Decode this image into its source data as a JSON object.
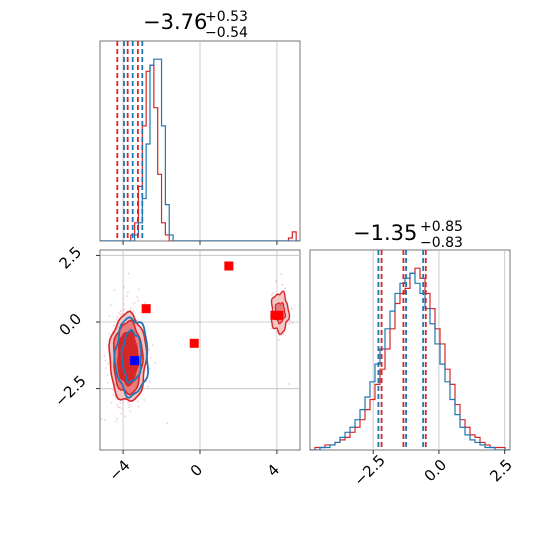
{
  "chart_data": {
    "type": "corner",
    "colors": {
      "red": "#d62728",
      "blue": "#1f77b4",
      "marker_blue": "#0000ff",
      "grid": "#bfbfbf"
    },
    "panels": [
      {
        "id": "top-left-hist",
        "type": "histogram",
        "title": {
          "main": "−3.76",
          "sup": "+0.53",
          "sub": "−0.54"
        },
        "xlim": [
          -5.2,
          5.2
        ],
        "grid": true,
        "series": [
          {
            "name": "",
            "color": "#d62728",
            "bin_start": -5.2,
            "bin_width": 0.2,
            "counts": [
              0,
              0,
              0,
              0,
              0,
              0,
              0,
              0,
              2,
              6,
              18,
              38,
              56,
              58,
              44,
              22,
              6,
              2,
              0,
              0,
              0,
              0,
              0,
              0,
              0,
              0,
              0,
              0,
              0,
              0,
              0,
              0,
              0,
              0,
              0,
              0,
              0,
              0,
              0,
              0,
              0,
              0,
              0,
              0,
              0,
              0,
              0,
              0,
              0,
              1,
              3,
              0
            ]
          },
          {
            "name": "",
            "color": "#1f77b4",
            "bin_start": -5.2,
            "bin_width": 0.2,
            "counts": [
              0,
              0,
              0,
              0,
              0,
              0,
              0,
              0,
              0,
              2,
              6,
              14,
              32,
              58,
              60,
              60,
              38,
              12,
              2,
              0,
              0,
              0,
              0,
              0,
              0,
              0,
              0,
              0,
              0,
              0,
              0,
              0,
              0,
              0,
              0,
              0,
              0,
              0,
              0,
              0,
              0,
              0,
              0,
              0,
              0,
              0,
              0,
              0,
              0,
              0,
              0,
              0
            ]
          }
        ],
        "quantile_lines": [
          {
            "color": "#d62728",
            "x": [
              -4.3,
              -3.76,
              -3.23
            ]
          },
          {
            "color": "#1f77b4",
            "x": [
              -3.95,
              -3.5,
              -3.0
            ]
          }
        ]
      },
      {
        "id": "bottom-left-2d",
        "type": "contour",
        "xlim": [
          -5.2,
          5.2
        ],
        "ylim": [
          -4.8,
          2.7
        ],
        "xticks": [
          -4,
          0,
          4
        ],
        "xtick_labels": [
          "−4",
          "0",
          "4"
        ],
        "yticks": [
          2.5,
          0.0,
          -2.5
        ],
        "ytick_labels": [
          "2.5",
          "0.0",
          "−2.5"
        ],
        "grid": true,
        "red_contours": [
          {
            "center": [
              -3.75,
              -1.35
            ],
            "radii": [
              0.95,
              1.65
            ],
            "fill": "#f4c7c7"
          },
          {
            "center": [
              -3.75,
              -1.35
            ],
            "radii": [
              0.75,
              1.35
            ],
            "fill": "#e77b7d"
          },
          {
            "center": [
              -3.75,
              -1.35
            ],
            "radii": [
              0.52,
              1.0
            ],
            "fill": "#d62728"
          }
        ],
        "red_island": {
          "center": [
            4.15,
            0.35
          ],
          "radii": [
            0.45,
            0.75
          ]
        },
        "blue_contours": [
          {
            "center": [
              -3.55,
              -1.3
            ],
            "radii": [
              0.85,
              1.45
            ]
          },
          {
            "center": [
              -3.55,
              -1.3
            ],
            "radii": [
              0.5,
              0.95
            ]
          }
        ],
        "red_markers": [
          [
            -2.8,
            0.5
          ],
          [
            1.5,
            2.1
          ],
          [
            -0.3,
            -0.8
          ],
          [
            3.9,
            0.25
          ],
          [
            4.1,
            0.25
          ]
        ],
        "blue_markers": [
          [
            -3.4,
            -1.45
          ]
        ]
      },
      {
        "id": "bottom-right-hist",
        "type": "histogram",
        "title": {
          "main": "−1.35",
          "sup": "+0.85",
          "sub": "−0.83"
        },
        "xlim": [
          -4.9,
          2.7
        ],
        "xticks": [
          -2.5,
          0.0,
          2.5
        ],
        "xtick_labels": [
          "−2.5",
          "0.0",
          "2.5"
        ],
        "grid": true,
        "series": [
          {
            "name": "",
            "color": "#d62728",
            "bin_start": -4.9,
            "bin_width": 0.19,
            "counts": [
              0,
              1,
              1,
              2,
              2,
              3,
              4,
              5,
              7,
              9,
              12,
              16,
              20,
              26,
              32,
              40,
              48,
              58,
              62,
              64,
              70,
              72,
              68,
              62,
              56,
              48,
              42,
              32,
              26,
              18,
              12,
              9,
              6,
              5,
              3,
              2,
              1,
              1,
              1,
              0
            ]
          },
          {
            "name": "",
            "color": "#1f77b4",
            "bin_start": -4.9,
            "bin_width": 0.19,
            "counts": [
              0,
              0,
              1,
              1,
              2,
              3,
              5,
              7,
              9,
              12,
              16,
              21,
              27,
              34,
              40,
              48,
              55,
              62,
              66,
              68,
              70,
              66,
              62,
              56,
              50,
              42,
              34,
              27,
              20,
              14,
              9,
              6,
              4,
              3,
              2,
              1,
              1,
              0,
              0,
              0
            ]
          }
        ],
        "quantile_lines": [
          {
            "color": "#d62728",
            "x": [
              -2.18,
              -1.35,
              -0.5
            ]
          },
          {
            "color": "#1f77b4",
            "x": [
              -2.3,
              -1.25,
              -0.6
            ]
          }
        ]
      }
    ]
  }
}
